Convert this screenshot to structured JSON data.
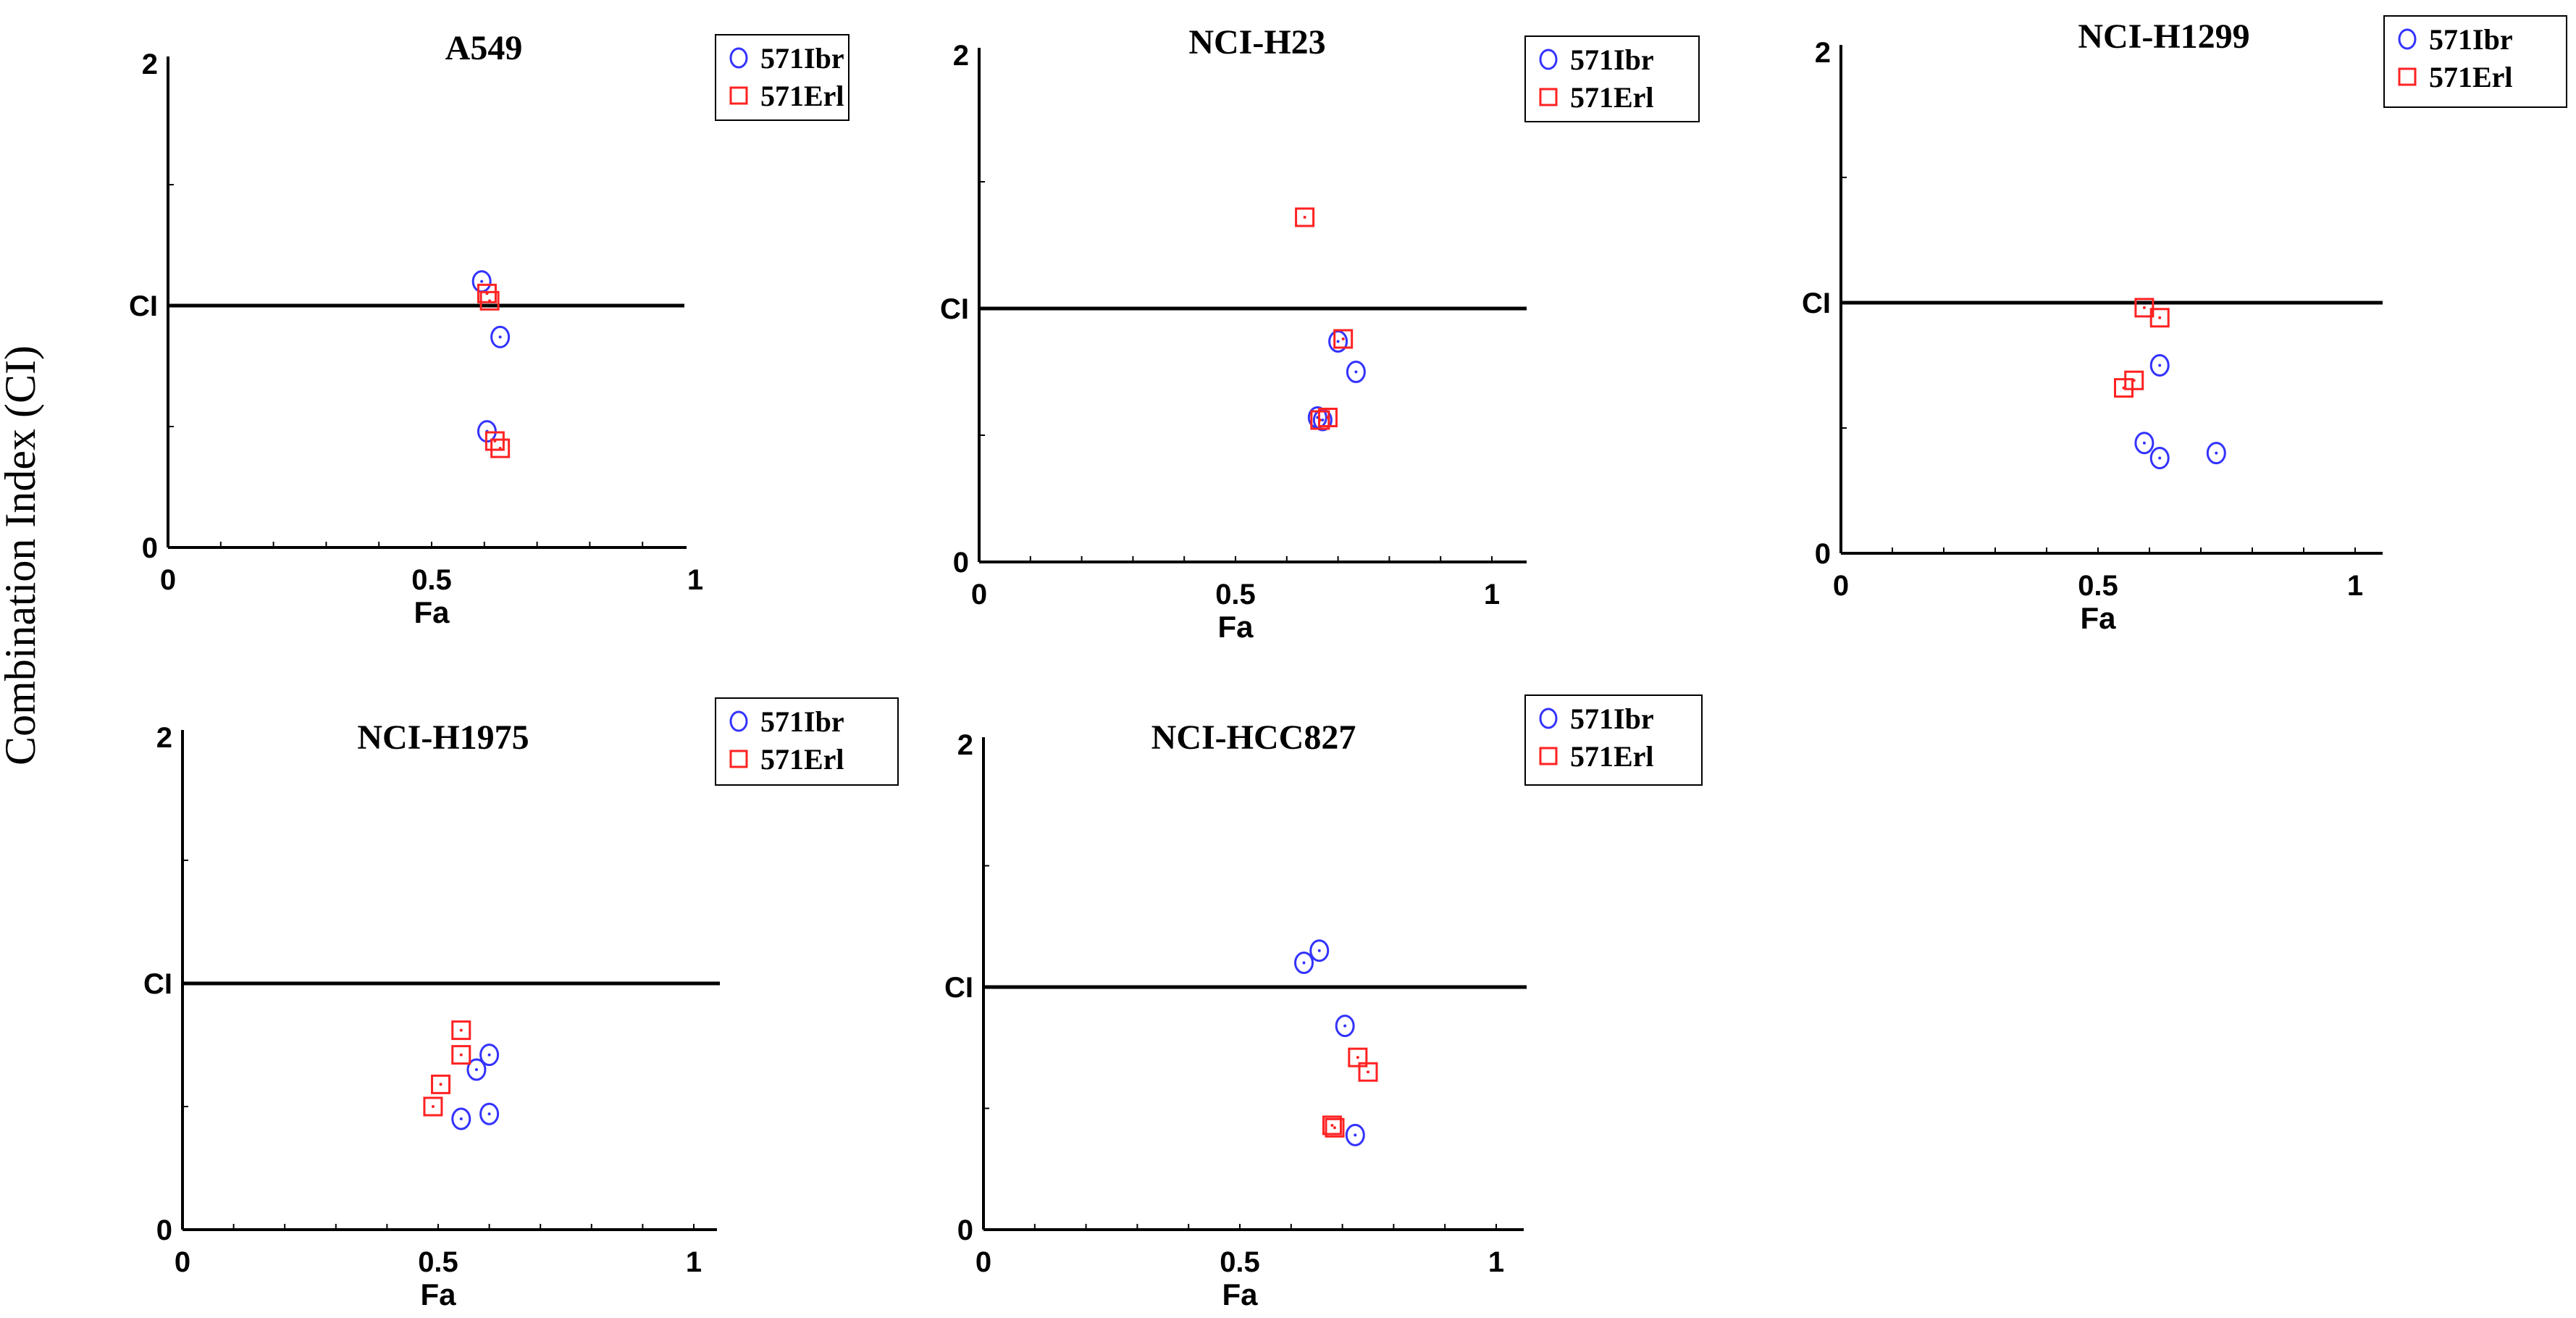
{
  "figure": {
    "ylabel": "Combination Index (CI)"
  },
  "chart_data": [
    {
      "type": "scatter",
      "title": "A549",
      "xlabel": "Fa",
      "ylabel": "",
      "xlim": [
        0,
        1.05
      ],
      "ylim": [
        0,
        2
      ],
      "x_ticks": [
        {
          "v": 0,
          "label": "0"
        },
        {
          "v": 0.5,
          "label": "0.5"
        },
        {
          "v": 1,
          "label": "1"
        }
      ],
      "y_ticks": [
        {
          "v": 0,
          "label": "0"
        },
        {
          "v": 1,
          "label": "CI"
        },
        {
          "v": 2,
          "label": "2"
        }
      ],
      "reference_line": {
        "y": 1
      },
      "legend_position": "top-right",
      "series": [
        {
          "name": "571Ibr",
          "marker": "circle",
          "color": "#3333ff",
          "points": [
            [
              0.595,
              1.1
            ],
            [
              0.63,
              0.87
            ],
            [
              0.605,
              0.48
            ]
          ]
        },
        {
          "name": "571Erl",
          "marker": "square",
          "color": "#ff2222",
          "points": [
            [
              0.605,
              1.05
            ],
            [
              0.61,
              1.02
            ],
            [
              0.62,
              0.44
            ],
            [
              0.63,
              0.41
            ]
          ]
        }
      ]
    },
    {
      "type": "scatter",
      "title": "NCI-H23",
      "xlabel": "Fa",
      "ylabel": "",
      "xlim": [
        0,
        1.05
      ],
      "ylim": [
        0,
        2
      ],
      "x_ticks": [
        {
          "v": 0,
          "label": "0"
        },
        {
          "v": 0.5,
          "label": "0.5"
        },
        {
          "v": 1,
          "label": "1"
        }
      ],
      "y_ticks": [
        {
          "v": 0,
          "label": "0"
        },
        {
          "v": 1,
          "label": "CI"
        },
        {
          "v": 2,
          "label": "2"
        }
      ],
      "reference_line": {
        "y": 1
      },
      "legend_position": "top-right",
      "series": [
        {
          "name": "571Ibr",
          "marker": "circle",
          "color": "#3333ff",
          "points": [
            [
              0.7,
              0.87
            ],
            [
              0.735,
              0.75
            ],
            [
              0.66,
              0.57
            ],
            [
              0.67,
              0.56
            ]
          ]
        },
        {
          "name": "571Erl",
          "marker": "square",
          "color": "#ff2222",
          "points": [
            [
              0.635,
              1.36
            ],
            [
              0.71,
              0.88
            ],
            [
              0.68,
              0.57
            ],
            [
              0.665,
              0.56
            ]
          ]
        }
      ]
    },
    {
      "type": "scatter",
      "title": "NCI-H1299",
      "xlabel": "Fa",
      "ylabel": "",
      "xlim": [
        0,
        1.05
      ],
      "ylim": [
        0,
        2
      ],
      "x_ticks": [
        {
          "v": 0,
          "label": "0"
        },
        {
          "v": 0.5,
          "label": "0.5"
        },
        {
          "v": 1,
          "label": "1"
        }
      ],
      "y_ticks": [
        {
          "v": 0,
          "label": "0"
        },
        {
          "v": 1,
          "label": "CI"
        },
        {
          "v": 2,
          "label": "2"
        }
      ],
      "reference_line": {
        "y": 1
      },
      "legend_position": "top-right",
      "series": [
        {
          "name": "571Ibr",
          "marker": "circle",
          "color": "#3333ff",
          "points": [
            [
              0.62,
              0.75
            ],
            [
              0.59,
              0.44
            ],
            [
              0.62,
              0.38
            ],
            [
              0.73,
              0.4
            ]
          ]
        },
        {
          "name": "571Erl",
          "marker": "square",
          "color": "#ff2222",
          "points": [
            [
              0.59,
              0.98
            ],
            [
              0.62,
              0.94
            ],
            [
              0.57,
              0.69
            ],
            [
              0.55,
              0.66
            ]
          ]
        }
      ]
    },
    {
      "type": "scatter",
      "title": "NCI-H1975",
      "xlabel": "Fa",
      "ylabel": "",
      "xlim": [
        0,
        1.05
      ],
      "ylim": [
        0,
        2
      ],
      "x_ticks": [
        {
          "v": 0,
          "label": "0"
        },
        {
          "v": 0.5,
          "label": "0.5"
        },
        {
          "v": 1,
          "label": "1"
        }
      ],
      "y_ticks": [
        {
          "v": 0,
          "label": "0"
        },
        {
          "v": 1,
          "label": "CI"
        },
        {
          "v": 2,
          "label": "2"
        }
      ],
      "reference_line": {
        "y": 1
      },
      "legend_position": "top-right",
      "series": [
        {
          "name": "571Ibr",
          "marker": "circle",
          "color": "#3333ff",
          "points": [
            [
              0.6,
              0.71
            ],
            [
              0.575,
              0.65
            ],
            [
              0.6,
              0.47
            ],
            [
              0.545,
              0.45
            ]
          ]
        },
        {
          "name": "571Erl",
          "marker": "square",
          "color": "#ff2222",
          "points": [
            [
              0.545,
              0.81
            ],
            [
              0.545,
              0.71
            ],
            [
              0.505,
              0.59
            ],
            [
              0.49,
              0.5
            ]
          ]
        }
      ]
    },
    {
      "type": "scatter",
      "title": "NCI-HCC827",
      "xlabel": "Fa",
      "ylabel": "",
      "xlim": [
        0,
        1.05
      ],
      "ylim": [
        0,
        2
      ],
      "x_ticks": [
        {
          "v": 0,
          "label": "0"
        },
        {
          "v": 0.5,
          "label": "0.5"
        },
        {
          "v": 1,
          "label": "1"
        }
      ],
      "y_ticks": [
        {
          "v": 0,
          "label": "0"
        },
        {
          "v": 1,
          "label": "CI"
        },
        {
          "v": 2,
          "label": "2"
        }
      ],
      "reference_line": {
        "y": 1
      },
      "legend_position": "top-right",
      "series": [
        {
          "name": "571Ibr",
          "marker": "circle",
          "color": "#3333ff",
          "points": [
            [
              0.625,
              1.1
            ],
            [
              0.655,
              1.15
            ],
            [
              0.705,
              0.84
            ],
            [
              0.725,
              0.39
            ]
          ]
        },
        {
          "name": "571Erl",
          "marker": "square",
          "color": "#ff2222",
          "points": [
            [
              0.73,
              0.71
            ],
            [
              0.75,
              0.65
            ],
            [
              0.68,
              0.43
            ],
            [
              0.685,
              0.42
            ]
          ]
        }
      ]
    }
  ]
}
